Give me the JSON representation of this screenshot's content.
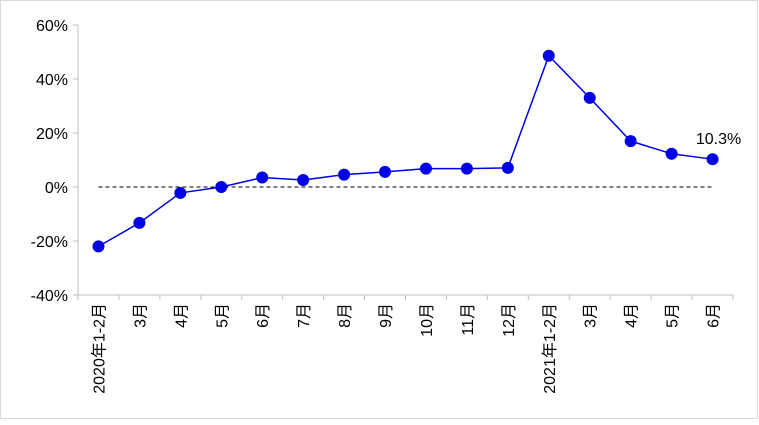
{
  "chart_data": {
    "type": "line",
    "categories": [
      "2020年1-2月",
      "3月",
      "4月",
      "5月",
      "6月",
      "7月",
      "8月",
      "9月",
      "10月",
      "11月",
      "12月",
      "2021年1-2月",
      "3月",
      "4月",
      "5月",
      "6月"
    ],
    "series": [
      {
        "color": "#0000e6",
        "values": [
          -22,
          -13.3,
          -2.2,
          0,
          3.5,
          2.6,
          4.6,
          5.6,
          6.8,
          6.8,
          7.1,
          48.6,
          33,
          17,
          12.3,
          10.3
        ],
        "value_labels": [
          null,
          null,
          null,
          null,
          null,
          null,
          null,
          null,
          null,
          null,
          null,
          null,
          null,
          null,
          null,
          "10.3%"
        ]
      }
    ],
    "ylim": [
      -40,
      60
    ],
    "yticks": [
      {
        "value": -40,
        "label": "-40%"
      },
      {
        "value": -20,
        "label": "-20%"
      },
      {
        "value": 0,
        "label": "0%"
      },
      {
        "value": 20,
        "label": "20%"
      },
      {
        "value": 40,
        "label": "40%"
      },
      {
        "value": 60,
        "label": "60%"
      }
    ],
    "grid": false
  }
}
